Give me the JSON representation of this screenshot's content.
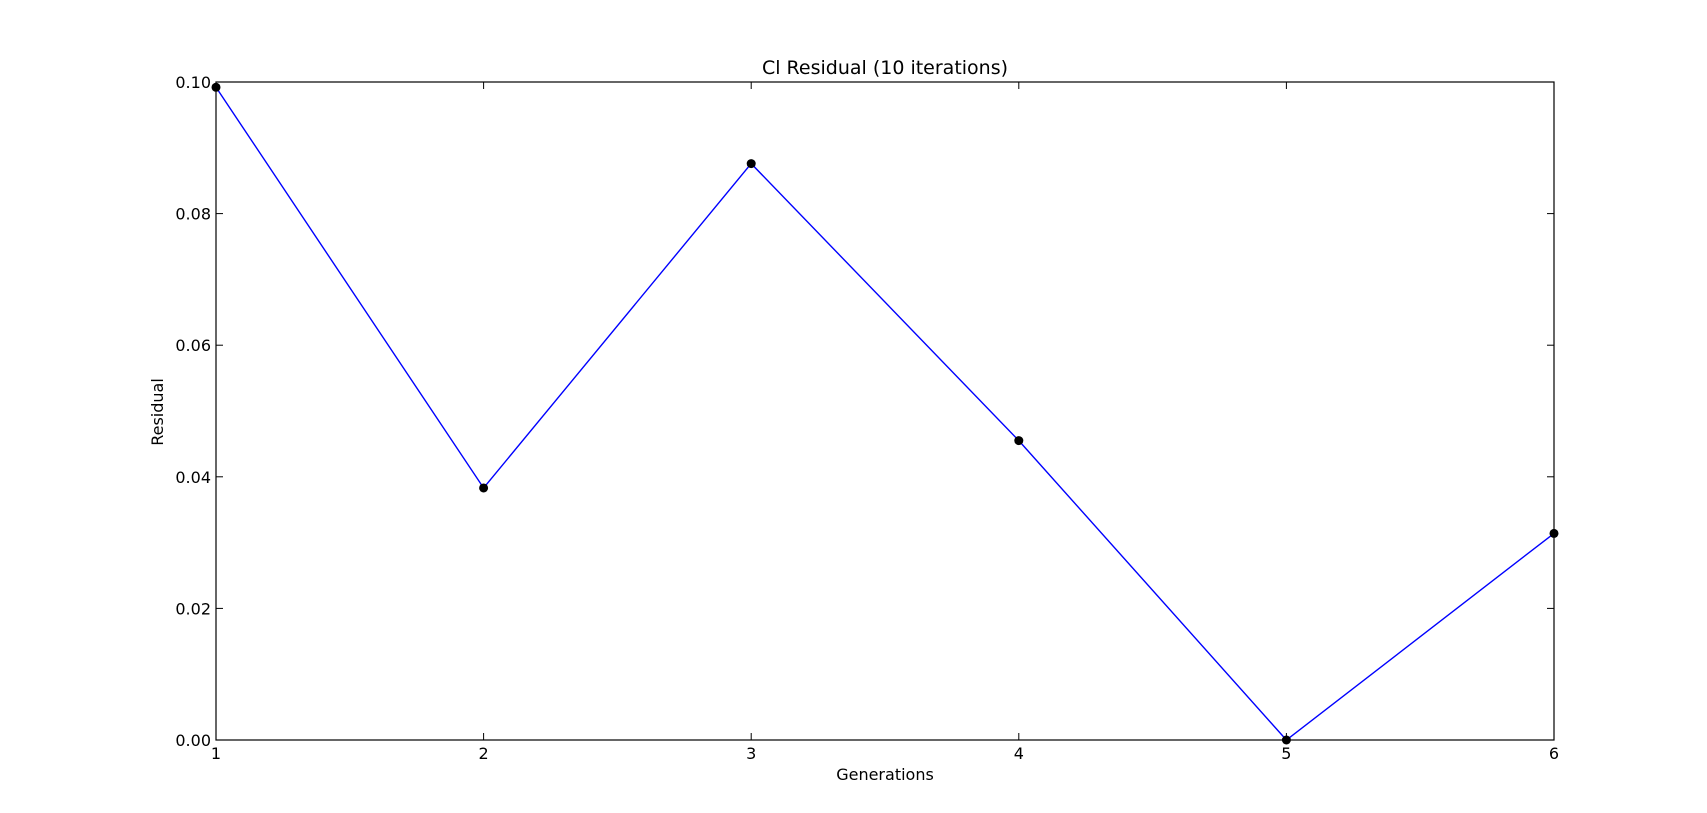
{
  "chart_data": {
    "type": "line",
    "title": "Cl Residual (10 iterations)",
    "xlabel": "Generations",
    "ylabel": "Residual",
    "xlim": [
      1,
      6
    ],
    "ylim": [
      0.0,
      0.1
    ],
    "x_ticks": [
      "1",
      "2",
      "3",
      "4",
      "5",
      "6"
    ],
    "y_ticks": [
      "0.00",
      "0.02",
      "0.04",
      "0.06",
      "0.08",
      "0.10"
    ],
    "grid": false,
    "legend": "none",
    "series": [
      {
        "x": [
          1,
          2,
          3,
          4,
          5,
          6
        ],
        "values": [
          0.0992,
          0.0383,
          0.0876,
          0.0455,
          0.0,
          0.0314
        ],
        "line_color": "#0000ff",
        "marker_color": "#000000"
      }
    ]
  }
}
